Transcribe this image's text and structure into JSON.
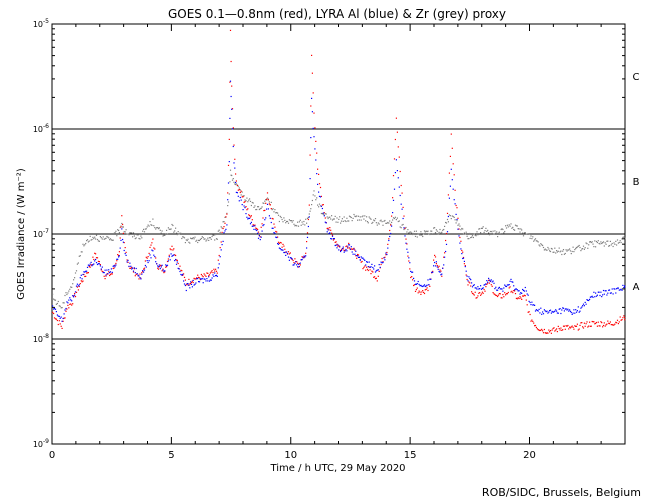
{
  "chart_data": {
    "type": "scatter",
    "title": "GOES 0.1—0.8nm (red), LYRA Al (blue) & Zr (grey) proxy",
    "xlabel": "Time / h UTC, 29 May 2020",
    "ylabel": "GOES Irradiance / (W m⁻²)",
    "credit": "ROB/SIDC, Brussels, Belgium",
    "xlim": [
      0,
      24
    ],
    "ylim": [
      1e-09,
      1e-05
    ],
    "yscale": "log",
    "x_ticks": [
      0,
      5,
      10,
      15,
      20
    ],
    "x_tick_labels": [
      "0",
      "5",
      "10",
      "15",
      "20"
    ],
    "y_ticks": [
      {
        "value": 1e-05,
        "base": "10",
        "exp": "-5"
      },
      {
        "value": 1e-06,
        "base": "10",
        "exp": "-6"
      },
      {
        "value": 1e-07,
        "base": "10",
        "exp": "-7"
      },
      {
        "value": 1e-08,
        "base": "10",
        "exp": "-8"
      },
      {
        "value": 1e-09,
        "base": "10",
        "exp": "-9"
      }
    ],
    "reference_lines": [
      1e-06,
      1e-07,
      1e-08
    ],
    "flare_classes": [
      {
        "label": "C",
        "value": 3.2e-06
      },
      {
        "label": "B",
        "value": 3.2e-07
      },
      {
        "label": "A",
        "value": 3.2e-08
      }
    ],
    "series": [
      {
        "name": "GOES 0.1-0.8nm",
        "color": "#ff0000",
        "points": [
          [
            0.0,
            1.8e-08
          ],
          [
            0.2,
            1.5e-08
          ],
          [
            0.4,
            1.3e-08
          ],
          [
            0.6,
            2e-08
          ],
          [
            0.8,
            2.2e-08
          ],
          [
            1.0,
            2.8e-08
          ],
          [
            1.2,
            3.5e-08
          ],
          [
            1.5,
            4.5e-08
          ],
          [
            1.8,
            6.5e-08
          ],
          [
            2.0,
            5e-08
          ],
          [
            2.2,
            4e-08
          ],
          [
            2.5,
            4.2e-08
          ],
          [
            2.8,
            7e-08
          ],
          [
            2.9,
            1.4e-07
          ],
          [
            3.0,
            8e-08
          ],
          [
            3.2,
            5e-08
          ],
          [
            3.5,
            4.2e-08
          ],
          [
            3.7,
            3.8e-08
          ],
          [
            4.0,
            6.5e-08
          ],
          [
            4.2,
            8.5e-08
          ],
          [
            4.4,
            5e-08
          ],
          [
            4.7,
            4.5e-08
          ],
          [
            5.0,
            8e-08
          ],
          [
            5.3,
            5e-08
          ],
          [
            5.6,
            3.4e-08
          ],
          [
            6.0,
            3.8e-08
          ],
          [
            6.5,
            4e-08
          ],
          [
            6.9,
            4.5e-08
          ],
          [
            7.1,
            1e-07
          ],
          [
            7.3,
            1.5e-07
          ],
          [
            7.4,
            8e-07
          ],
          [
            7.45,
            8.5e-06
          ],
          [
            7.5,
            2.5e-06
          ],
          [
            7.6,
            7e-07
          ],
          [
            7.7,
            3e-07
          ],
          [
            7.9,
            2.5e-07
          ],
          [
            8.1,
            1.8e-07
          ],
          [
            8.4,
            1.3e-07
          ],
          [
            8.7,
            1e-07
          ],
          [
            9.0,
            2.5e-07
          ],
          [
            9.2,
            1.5e-07
          ],
          [
            9.5,
            8e-08
          ],
          [
            9.8,
            7e-08
          ],
          [
            10.0,
            6e-08
          ],
          [
            10.3,
            5e-08
          ],
          [
            10.6,
            6.5e-08
          ],
          [
            10.75,
            1.8e-07
          ],
          [
            10.85,
            5e-06
          ],
          [
            10.95,
            1.5e-06
          ],
          [
            11.1,
            4e-07
          ],
          [
            11.3,
            2e-07
          ],
          [
            11.5,
            1.2e-07
          ],
          [
            11.8,
            9e-08
          ],
          [
            12.1,
            7e-08
          ],
          [
            12.4,
            8e-08
          ],
          [
            12.7,
            6.5e-08
          ],
          [
            13.0,
            5e-08
          ],
          [
            13.3,
            4.5e-08
          ],
          [
            13.6,
            3.8e-08
          ],
          [
            13.8,
            5.5e-08
          ],
          [
            14.0,
            7e-08
          ],
          [
            14.2,
            1.5e-07
          ],
          [
            14.4,
            1.2e-06
          ],
          [
            14.6,
            3e-07
          ],
          [
            14.8,
            9e-08
          ],
          [
            15.0,
            4e-08
          ],
          [
            15.2,
            3e-08
          ],
          [
            15.5,
            2.8e-08
          ],
          [
            15.8,
            3.2e-08
          ],
          [
            16.0,
            6e-08
          ],
          [
            16.3,
            4e-08
          ],
          [
            16.5,
            1e-07
          ],
          [
            16.7,
            9e-07
          ],
          [
            16.9,
            2e-07
          ],
          [
            17.1,
            8e-08
          ],
          [
            17.4,
            3.5e-08
          ],
          [
            17.7,
            2.6e-08
          ],
          [
            18.0,
            2.8e-08
          ],
          [
            18.3,
            3.5e-08
          ],
          [
            18.6,
            2.5e-08
          ],
          [
            18.9,
            2.6e-08
          ],
          [
            19.2,
            3e-08
          ],
          [
            19.5,
            2.4e-08
          ],
          [
            19.8,
            2.5e-08
          ],
          [
            20.0,
            1.6e-08
          ],
          [
            20.3,
            1.3e-08
          ],
          [
            20.6,
            1.2e-08
          ],
          [
            21.0,
            1.2e-08
          ],
          [
            21.4,
            1.3e-08
          ],
          [
            21.8,
            1.25e-08
          ],
          [
            22.2,
            1.35e-08
          ],
          [
            22.6,
            1.4e-08
          ],
          [
            23.0,
            1.4e-08
          ],
          [
            23.4,
            1.4e-08
          ],
          [
            23.7,
            1.5e-08
          ],
          [
            24.0,
            1.6e-08
          ]
        ]
      },
      {
        "name": "LYRA Al proxy",
        "color": "#0000ff",
        "points": [
          [
            0.0,
            2e-08
          ],
          [
            0.2,
            1.7e-08
          ],
          [
            0.4,
            1.5e-08
          ],
          [
            0.6,
            2.2e-08
          ],
          [
            0.8,
            2.4e-08
          ],
          [
            1.0,
            3e-08
          ],
          [
            1.2,
            3.8e-08
          ],
          [
            1.5,
            5e-08
          ],
          [
            1.8,
            5.5e-08
          ],
          [
            2.0,
            4.8e-08
          ],
          [
            2.2,
            4.3e-08
          ],
          [
            2.5,
            4.4e-08
          ],
          [
            2.8,
            6.5e-08
          ],
          [
            2.9,
            1.1e-07
          ],
          [
            3.0,
            7e-08
          ],
          [
            3.2,
            5e-08
          ],
          [
            3.5,
            4.5e-08
          ],
          [
            3.7,
            4e-08
          ],
          [
            4.0,
            5.5e-08
          ],
          [
            4.2,
            7e-08
          ],
          [
            4.4,
            5e-08
          ],
          [
            4.7,
            4.6e-08
          ],
          [
            5.0,
            6.5e-08
          ],
          [
            5.3,
            4.8e-08
          ],
          [
            5.6,
            3.1e-08
          ],
          [
            6.0,
            3.5e-08
          ],
          [
            6.5,
            3.7e-08
          ],
          [
            6.9,
            4.2e-08
          ],
          [
            7.1,
            8e-08
          ],
          [
            7.3,
            1.3e-07
          ],
          [
            7.4,
            5e-07
          ],
          [
            7.45,
            3e-06
          ],
          [
            7.5,
            1.5e-06
          ],
          [
            7.6,
            5e-07
          ],
          [
            7.7,
            2.5e-07
          ],
          [
            7.9,
            2e-07
          ],
          [
            8.1,
            1.6e-07
          ],
          [
            8.4,
            1.2e-07
          ],
          [
            8.7,
            9e-08
          ],
          [
            9.0,
            1.8e-07
          ],
          [
            9.2,
            1.2e-07
          ],
          [
            9.5,
            7.5e-08
          ],
          [
            9.8,
            6.5e-08
          ],
          [
            10.0,
            5.5e-08
          ],
          [
            10.3,
            5e-08
          ],
          [
            10.6,
            6e-08
          ],
          [
            10.75,
            1.5e-07
          ],
          [
            10.85,
            2e-06
          ],
          [
            10.95,
            8e-07
          ],
          [
            11.1,
            3e-07
          ],
          [
            11.3,
            1.7e-07
          ],
          [
            11.5,
            1.1e-07
          ],
          [
            11.8,
            8.5e-08
          ],
          [
            12.1,
            7e-08
          ],
          [
            12.4,
            7.5e-08
          ],
          [
            12.7,
            6.5e-08
          ],
          [
            13.0,
            5.5e-08
          ],
          [
            13.3,
            5e-08
          ],
          [
            13.6,
            4.5e-08
          ],
          [
            13.8,
            5.5e-08
          ],
          [
            14.0,
            6.5e-08
          ],
          [
            14.2,
            1.2e-07
          ],
          [
            14.4,
            5e-07
          ],
          [
            14.6,
            2e-07
          ],
          [
            14.8,
            8e-08
          ],
          [
            15.0,
            4.5e-08
          ],
          [
            15.2,
            3.5e-08
          ],
          [
            15.5,
            3.2e-08
          ],
          [
            15.8,
            3.5e-08
          ],
          [
            16.0,
            5.5e-08
          ],
          [
            16.3,
            4.2e-08
          ],
          [
            16.5,
            8e-08
          ],
          [
            16.7,
            4e-07
          ],
          [
            16.9,
            1.5e-07
          ],
          [
            17.1,
            7e-08
          ],
          [
            17.4,
            3.8e-08
          ],
          [
            17.7,
            3e-08
          ],
          [
            18.0,
            3.2e-08
          ],
          [
            18.3,
            3.8e-08
          ],
          [
            18.6,
            3e-08
          ],
          [
            18.9,
            3e-08
          ],
          [
            19.2,
            3.5e-08
          ],
          [
            19.5,
            2.8e-08
          ],
          [
            19.8,
            3e-08
          ],
          [
            20.0,
            2.2e-08
          ],
          [
            20.3,
            1.9e-08
          ],
          [
            20.6,
            1.8e-08
          ],
          [
            21.0,
            1.8e-08
          ],
          [
            21.4,
            1.9e-08
          ],
          [
            21.8,
            1.8e-08
          ],
          [
            22.2,
            2e-08
          ],
          [
            22.6,
            2.6e-08
          ],
          [
            23.0,
            2.7e-08
          ],
          [
            23.4,
            2.8e-08
          ],
          [
            23.7,
            3e-08
          ],
          [
            24.0,
            3.2e-08
          ]
        ]
      },
      {
        "name": "LYRA Zr proxy",
        "color": "#808080",
        "points": [
          [
            0.0,
            2.5e-08
          ],
          [
            0.2,
            2.2e-08
          ],
          [
            0.4,
            2e-08
          ],
          [
            0.6,
            2.8e-08
          ],
          [
            0.8,
            3.2e-08
          ],
          [
            1.0,
            4.5e-08
          ],
          [
            1.2,
            7e-08
          ],
          [
            1.5,
            9e-08
          ],
          [
            1.8,
            9.5e-08
          ],
          [
            2.0,
            9e-08
          ],
          [
            2.2,
            8.8e-08
          ],
          [
            2.5,
            9e-08
          ],
          [
            2.8,
            1.1e-07
          ],
          [
            2.9,
            1.3e-07
          ],
          [
            3.0,
            1.1e-07
          ],
          [
            3.2,
            1e-07
          ],
          [
            3.5,
            9.5e-08
          ],
          [
            3.7,
            9.5e-08
          ],
          [
            4.0,
            1.2e-07
          ],
          [
            4.2,
            1.3e-07
          ],
          [
            4.4,
            1.1e-07
          ],
          [
            4.7,
            1e-07
          ],
          [
            5.0,
            1.15e-07
          ],
          [
            5.3,
            1e-07
          ],
          [
            5.6,
            8.5e-08
          ],
          [
            6.0,
            8.8e-08
          ],
          [
            6.5,
            9e-08
          ],
          [
            6.9,
            9.5e-08
          ],
          [
            7.1,
            1.2e-07
          ],
          [
            7.3,
            1.6e-07
          ],
          [
            7.4,
            2.5e-07
          ],
          [
            7.45,
            4e-07
          ],
          [
            7.5,
            3.5e-07
          ],
          [
            7.6,
            3e-07
          ],
          [
            7.7,
            2.8e-07
          ],
          [
            7.9,
            2.5e-07
          ],
          [
            8.1,
            2.2e-07
          ],
          [
            8.4,
            1.9e-07
          ],
          [
            8.7,
            1.7e-07
          ],
          [
            9.0,
            2.2e-07
          ],
          [
            9.2,
            1.8e-07
          ],
          [
            9.5,
            1.4e-07
          ],
          [
            9.8,
            1.35e-07
          ],
          [
            10.0,
            1.3e-07
          ],
          [
            10.3,
            1.25e-07
          ],
          [
            10.6,
            1.3e-07
          ],
          [
            10.75,
            1.5e-07
          ],
          [
            10.85,
            2e-07
          ],
          [
            10.95,
            2.5e-07
          ],
          [
            11.1,
            2e-07
          ],
          [
            11.3,
            1.6e-07
          ],
          [
            11.5,
            1.5e-07
          ],
          [
            11.8,
            1.4e-07
          ],
          [
            12.1,
            1.35e-07
          ],
          [
            12.4,
            1.4e-07
          ],
          [
            12.7,
            1.45e-07
          ],
          [
            13.0,
            1.4e-07
          ],
          [
            13.3,
            1.35e-07
          ],
          [
            13.6,
            1.3e-07
          ],
          [
            13.8,
            1.3e-07
          ],
          [
            14.0,
            1.25e-07
          ],
          [
            14.2,
            1.3e-07
          ],
          [
            14.4,
            1.4e-07
          ],
          [
            14.6,
            1.2e-07
          ],
          [
            14.8,
            1.1e-07
          ],
          [
            15.0,
            1.05e-07
          ],
          [
            15.2,
            1e-07
          ],
          [
            15.5,
            1e-07
          ],
          [
            15.8,
            1e-07
          ],
          [
            16.0,
            1.1e-07
          ],
          [
            16.3,
            1.05e-07
          ],
          [
            16.5,
            1.3e-07
          ],
          [
            16.7,
            1.5e-07
          ],
          [
            16.9,
            1.3e-07
          ],
          [
            17.1,
            1.1e-07
          ],
          [
            17.4,
            9.5e-08
          ],
          [
            17.7,
            1e-07
          ],
          [
            18.0,
            1.1e-07
          ],
          [
            18.3,
            1.05e-07
          ],
          [
            18.6,
            1e-07
          ],
          [
            18.9,
            1.1e-07
          ],
          [
            19.2,
            1.2e-07
          ],
          [
            19.5,
            1.1e-07
          ],
          [
            19.8,
            1e-07
          ],
          [
            20.0,
            9.5e-08
          ],
          [
            20.3,
            8.5e-08
          ],
          [
            20.6,
            7.5e-08
          ],
          [
            21.0,
            7e-08
          ],
          [
            21.4,
            6.8e-08
          ],
          [
            21.8,
            7e-08
          ],
          [
            22.2,
            7.5e-08
          ],
          [
            22.6,
            8e-08
          ],
          [
            23.0,
            8.2e-08
          ],
          [
            23.4,
            8e-08
          ],
          [
            23.7,
            8.5e-08
          ],
          [
            24.0,
            9e-08
          ]
        ]
      }
    ]
  }
}
